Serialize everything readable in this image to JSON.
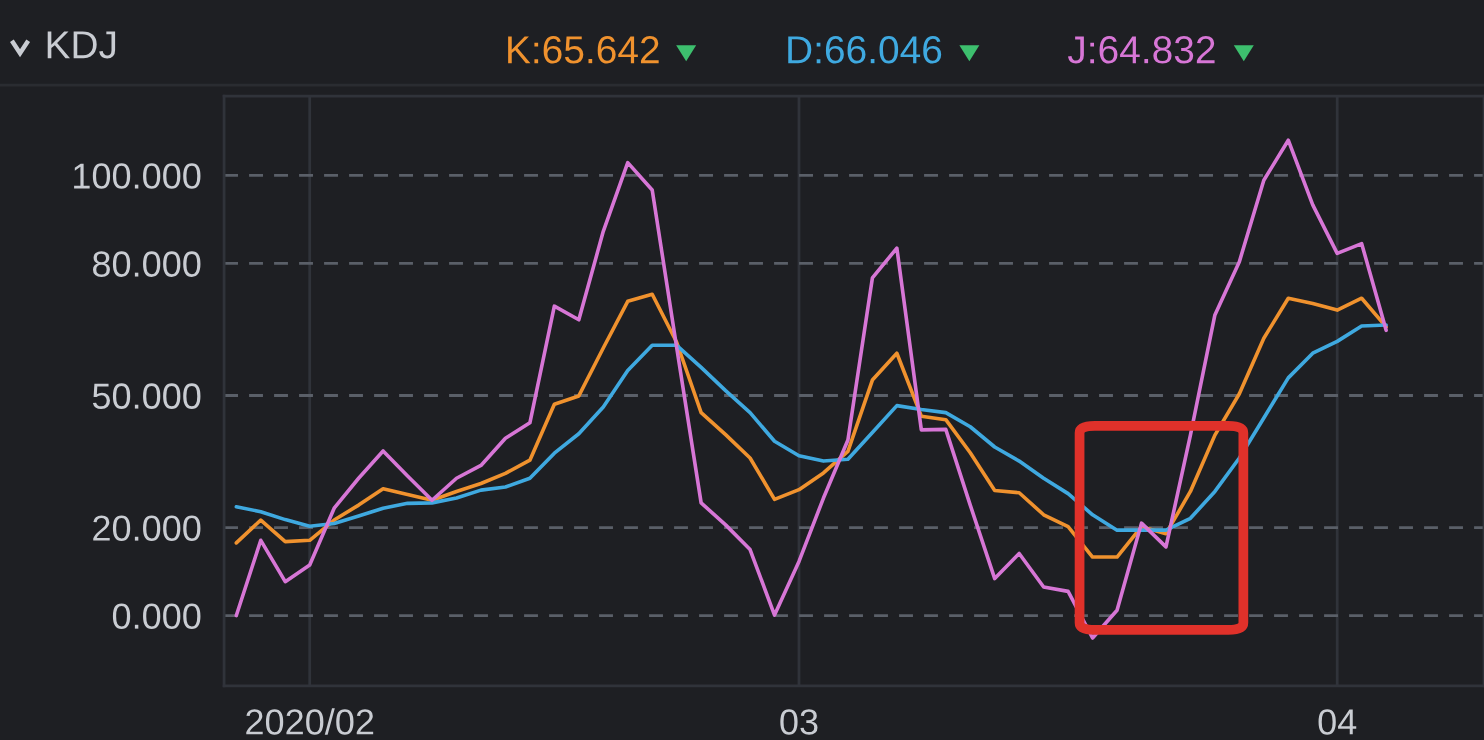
{
  "chart_data": {
    "type": "line",
    "title": "KDJ",
    "categories": [
      null,
      null,
      null,
      "2020/02",
      null,
      null,
      null,
      null,
      null,
      null,
      null,
      null,
      null,
      null,
      null,
      null,
      null,
      null,
      null,
      null,
      null,
      null,
      null,
      "03",
      null,
      null,
      null,
      null,
      null,
      null,
      null,
      null,
      null,
      null,
      null,
      null,
      null,
      null,
      null,
      null,
      null,
      null,
      null,
      null,
      null,
      "04",
      null,
      null
    ],
    "series": [
      {
        "name": "K:65.642",
        "color": "#f0922e",
        "values": [
          16.5,
          21.7,
          16.8,
          17.1,
          21.7,
          25.1,
          28.8,
          27.5,
          26.2,
          28.2,
          30.0,
          32.3,
          35.3,
          48.0,
          49.9,
          60.8,
          71.4,
          73.0,
          62.1,
          46.1,
          41.1,
          35.8,
          26.4,
          28.6,
          32.4,
          37.3,
          53.5,
          59.6,
          45.3,
          44.5,
          37.0,
          28.4,
          27.9,
          22.9,
          20.2,
          13.3,
          13.3,
          20.2,
          18.6,
          28.2,
          41.0,
          50.4,
          63.0,
          72.1,
          70.9,
          69.4,
          72.1,
          65.6
        ]
      },
      {
        "name": "D:66.046",
        "color": "#3fa9e0",
        "values": [
          24.7,
          23.6,
          21.8,
          20.3,
          20.9,
          22.6,
          24.4,
          25.5,
          25.6,
          26.7,
          28.5,
          29.2,
          31.2,
          36.9,
          41.3,
          47.4,
          55.7,
          61.4,
          61.4,
          56.4,
          51.1,
          46.1,
          39.6,
          36.3,
          35.1,
          35.5,
          41.6,
          47.7,
          46.8,
          46.1,
          42.9,
          38.3,
          35.1,
          31.2,
          27.7,
          22.9,
          19.4,
          19.4,
          19.4,
          22.1,
          28.2,
          35.8,
          44.9,
          54.0,
          59.6,
          62.3,
          65.8,
          66.0
        ]
      },
      {
        "name": "J:64.832",
        "color": "#d776d6",
        "values": [
          0.0,
          17.1,
          7.7,
          11.5,
          24.4,
          31.2,
          37.4,
          31.7,
          26.2,
          31.2,
          34.1,
          40.3,
          43.8,
          70.3,
          67.2,
          87.3,
          102.9,
          96.7,
          60.9,
          25.6,
          20.6,
          15.0,
          0.1,
          12.3,
          26.7,
          39.9,
          76.7,
          83.5,
          42.2,
          42.3,
          25.1,
          8.4,
          14.1,
          6.5,
          5.5,
          -5.1,
          1.2,
          21.0,
          15.6,
          41.0,
          68.3,
          80.4,
          98.9,
          108.0,
          93.3,
          82.3,
          84.5,
          64.8
        ]
      }
    ],
    "ylim": [
      -16,
      118
    ],
    "yticks": [
      {
        "value": 0,
        "label": "0.000"
      },
      {
        "value": 20,
        "label": "20.000"
      },
      {
        "value": 50,
        "label": "50.000"
      },
      {
        "value": 80,
        "label": "80.000"
      },
      {
        "value": 100,
        "label": "100.000"
      }
    ],
    "grid": true,
    "legend": "top",
    "line_style": "solid",
    "marker": "none"
  }
}
